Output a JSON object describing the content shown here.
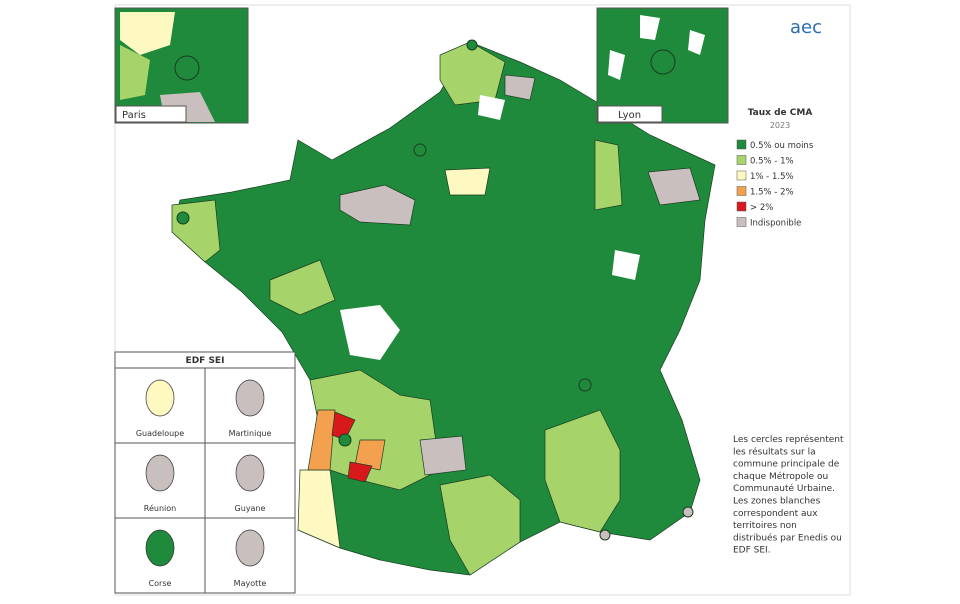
{
  "logo": "aec",
  "insets": {
    "paris": "Paris",
    "lyon": "Lyon"
  },
  "legend": {
    "title": "Taux de CMA",
    "subtitle": "2023",
    "items": [
      {
        "label": "0.5% ou moins",
        "color": "#1f8a3b"
      },
      {
        "label": "0.5% - 1%",
        "color": "#a6d46a"
      },
      {
        "label": "1% - 1.5%",
        "color": "#fdf9c0"
      },
      {
        "label": "1.5% - 2%",
        "color": "#f4a14f"
      },
      {
        "label": "> 2%",
        "color": "#d7191c"
      },
      {
        "label": "Indisponible",
        "color": "#c9bfbf"
      }
    ]
  },
  "edf_sei": {
    "title": "EDF SEI",
    "territories": [
      "Guadeloupe",
      "Martinique",
      "Réunion",
      "Guyane",
      "Corse",
      "Mayotte"
    ]
  },
  "note": [
    "Les cercles représentent",
    "les résultats sur la",
    "commune principale de",
    "chaque Métropole ou",
    "Communauté Urbaine.",
    "Les zones blanches",
    "correspondent aux",
    "territoires non",
    "distribués par Enedis ou",
    "EDF SEI."
  ]
}
